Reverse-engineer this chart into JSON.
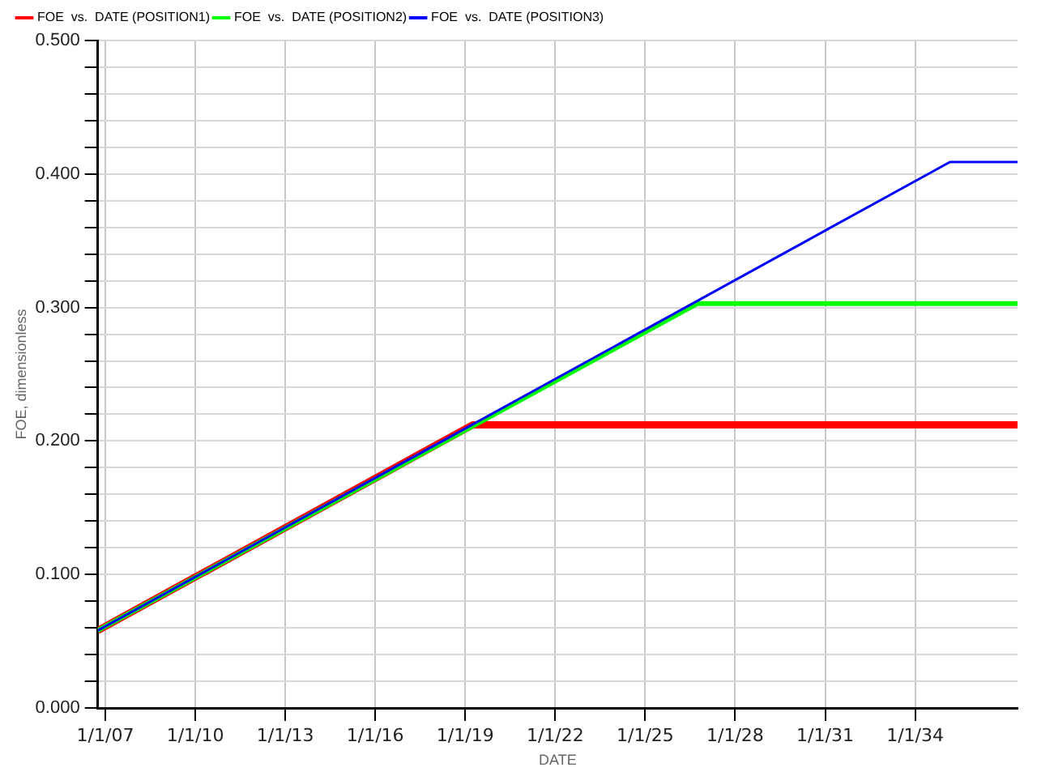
{
  "chart_data": {
    "type": "line",
    "xlabel": "DATE",
    "ylabel": "FOE, dimensionless",
    "series": [
      {
        "name": "FOE  vs.  DATE (POSITION1)",
        "color": "#ff0000",
        "x": [
          "2006-10-01",
          "2019-04-01",
          "2037-06-01"
        ],
        "values": [
          0.058,
          0.212,
          0.212
        ]
      },
      {
        "name": "FOE  vs.  DATE (POSITION2)",
        "color": "#00ff00",
        "x": [
          "2006-10-01",
          "2026-10-01",
          "2037-06-01"
        ],
        "values": [
          0.058,
          0.303,
          0.303
        ]
      },
      {
        "name": "FOE  vs.  DATE (POSITION3)",
        "color": "#0000ff",
        "x": [
          "2006-10-01",
          "2035-03-01",
          "2037-06-01"
        ],
        "values": [
          0.058,
          0.409,
          0.409
        ]
      }
    ],
    "xlim": [
      "2006-10-01",
      "2037-06-01"
    ],
    "xticks": [
      {
        "value": "2007-01-01",
        "label": "1/1/07"
      },
      {
        "value": "2010-01-01",
        "label": "1/1/10"
      },
      {
        "value": "2013-01-01",
        "label": "1/1/13"
      },
      {
        "value": "2016-01-01",
        "label": "1/1/16"
      },
      {
        "value": "2019-01-01",
        "label": "1/1/19"
      },
      {
        "value": "2022-01-01",
        "label": "1/1/22"
      },
      {
        "value": "2025-01-01",
        "label": "1/1/25"
      },
      {
        "value": "2028-01-01",
        "label": "1/1/28"
      },
      {
        "value": "2031-01-01",
        "label": "1/1/31"
      },
      {
        "value": "2034-01-01",
        "label": "1/1/34"
      }
    ],
    "ylim": [
      0,
      0.5
    ],
    "yticks": [
      {
        "value": 0,
        "label": "0.000"
      },
      {
        "value": 0.02,
        "label": null
      },
      {
        "value": 0.04,
        "label": null
      },
      {
        "value": 0.06,
        "label": null
      },
      {
        "value": 0.08,
        "label": null
      },
      {
        "value": 0.1,
        "label": "0.100"
      },
      {
        "value": 0.12,
        "label": null
      },
      {
        "value": 0.14,
        "label": null
      },
      {
        "value": 0.16,
        "label": null
      },
      {
        "value": 0.18,
        "label": null
      },
      {
        "value": 0.2,
        "label": "0.200"
      },
      {
        "value": 0.22,
        "label": null
      },
      {
        "value": 0.24,
        "label": null
      },
      {
        "value": 0.26,
        "label": null
      },
      {
        "value": 0.28,
        "label": null
      },
      {
        "value": 0.3,
        "label": "0.300"
      },
      {
        "value": 0.32,
        "label": null
      },
      {
        "value": 0.34,
        "label": null
      },
      {
        "value": 0.36,
        "label": null
      },
      {
        "value": 0.38,
        "label": null
      },
      {
        "value": 0.4,
        "label": "0.400"
      },
      {
        "value": 0.42,
        "label": null
      },
      {
        "value": 0.44,
        "label": null
      },
      {
        "value": 0.46,
        "label": null
      },
      {
        "value": 0.48,
        "label": null
      },
      {
        "value": 0.5,
        "label": "0.500"
      }
    ],
    "grid": true,
    "legend": "top left",
    "marker": "none",
    "line_style": "solid"
  }
}
